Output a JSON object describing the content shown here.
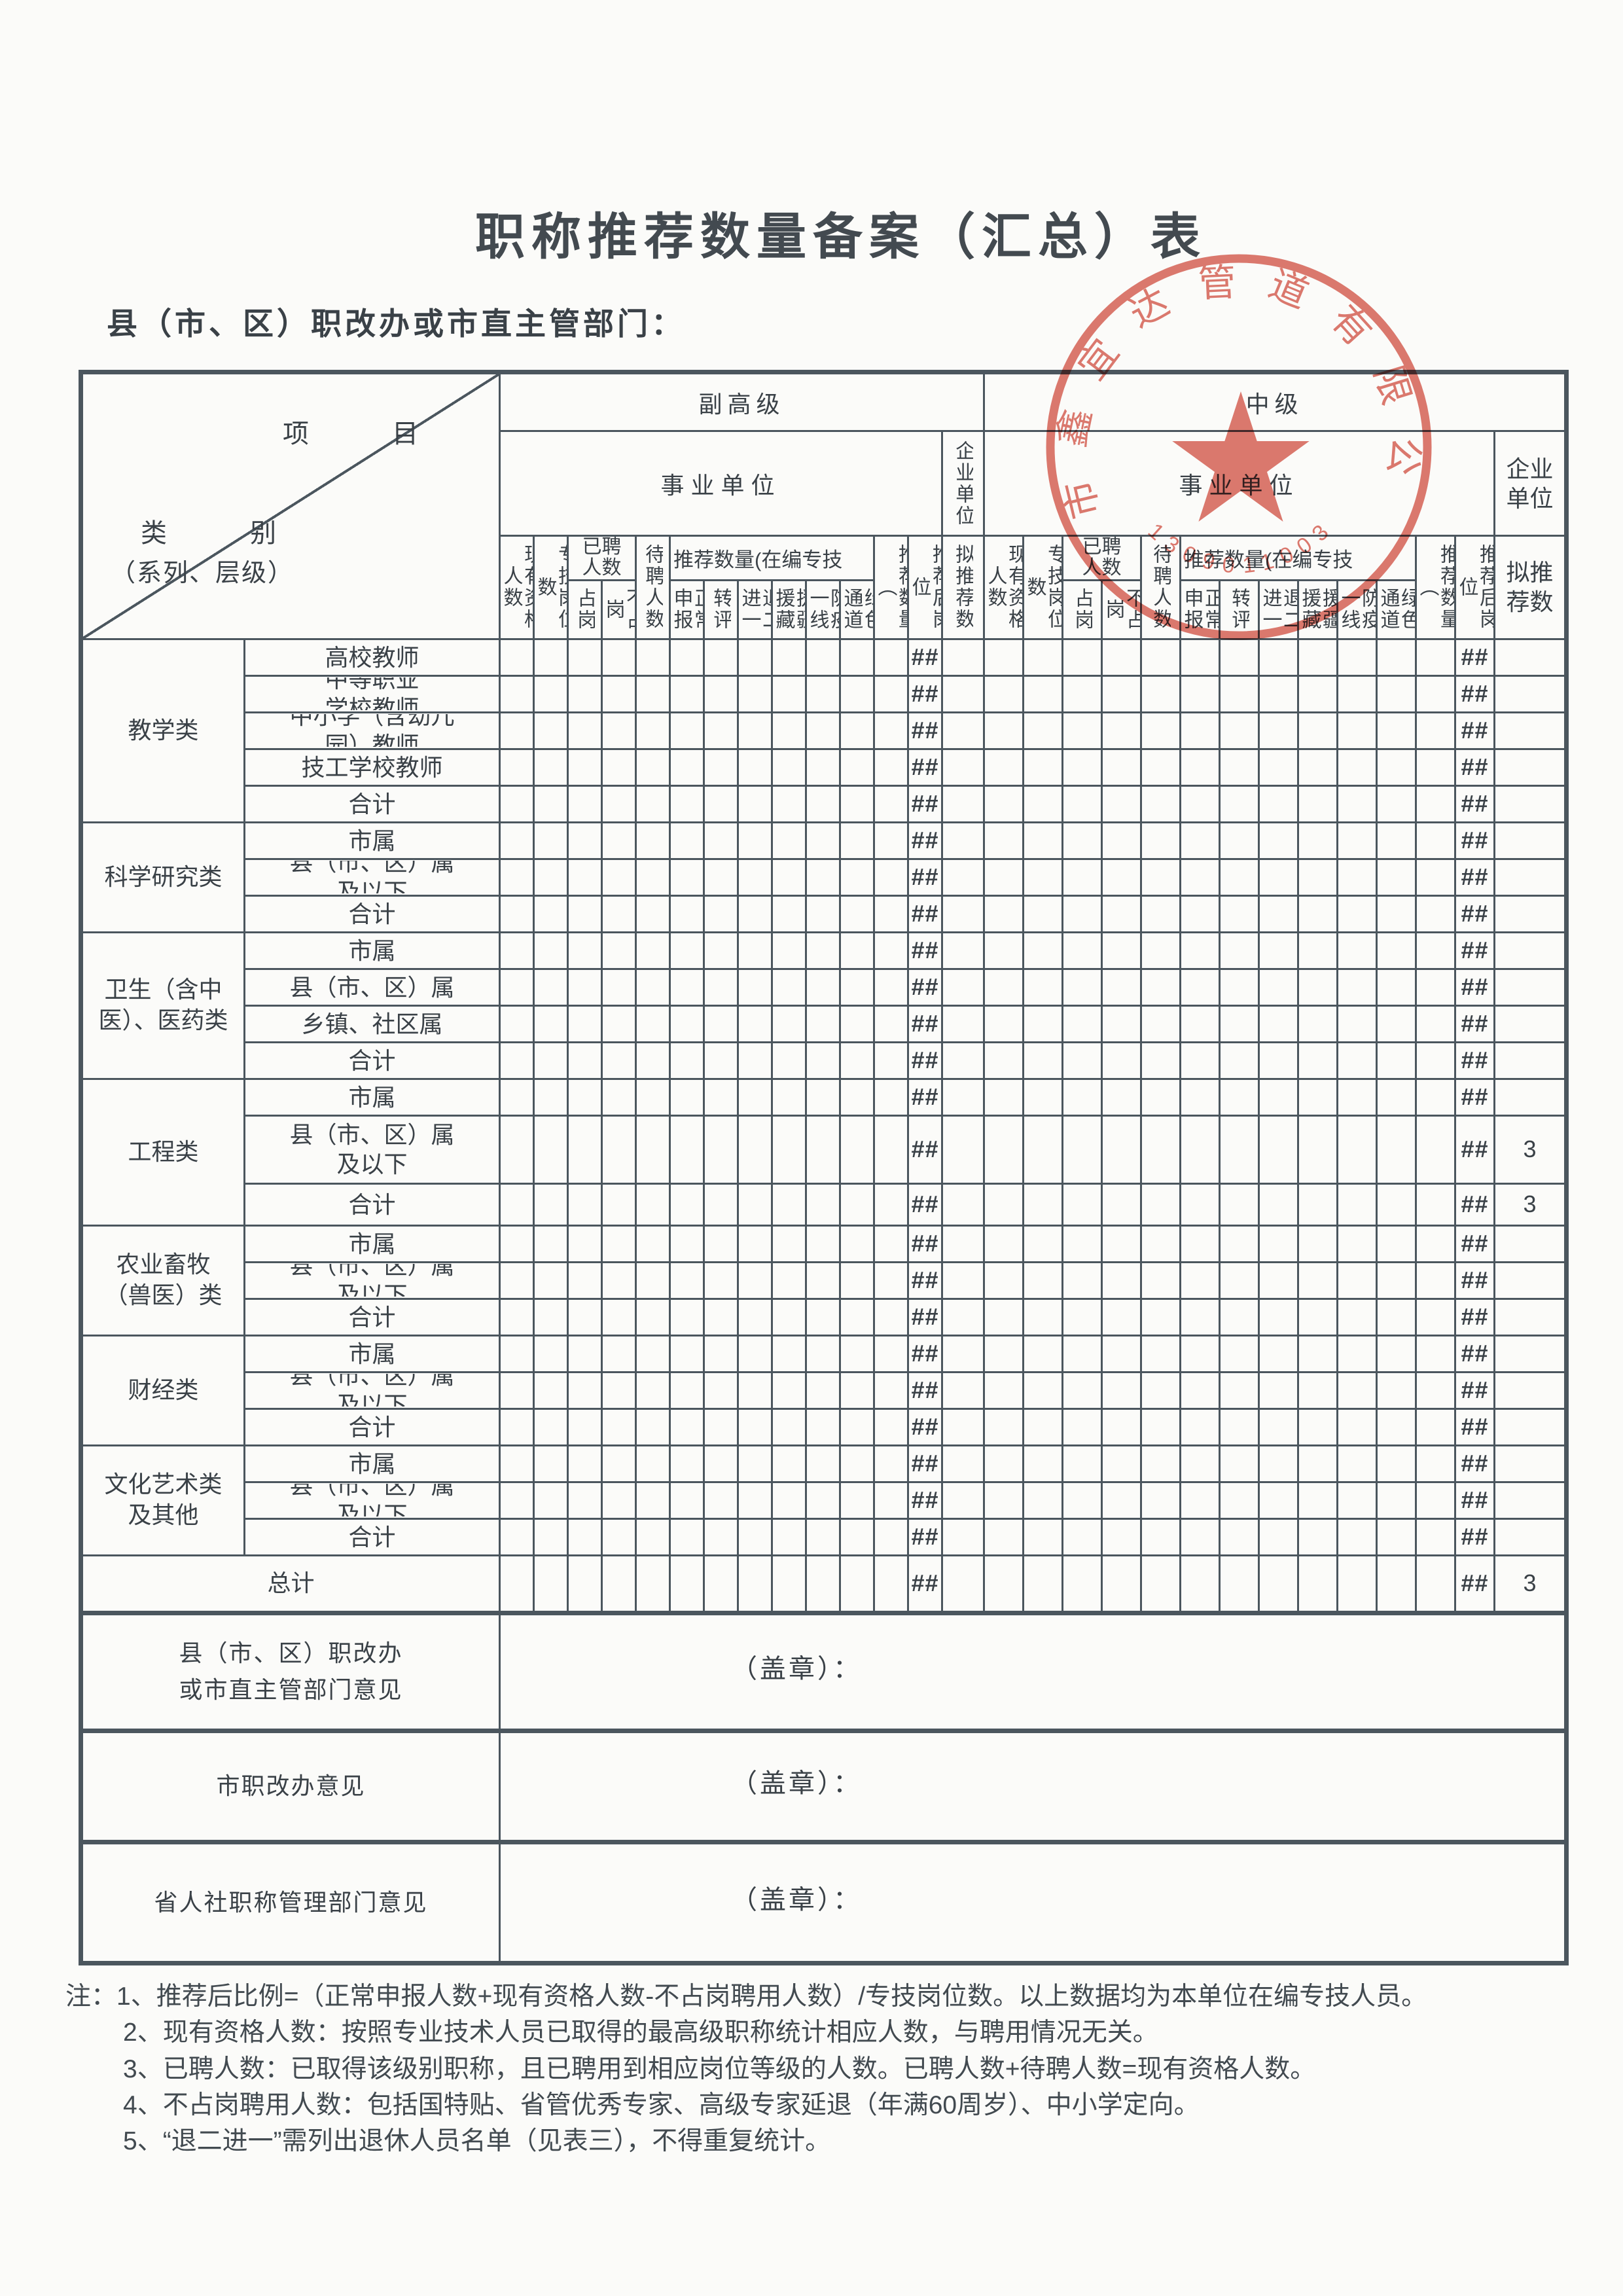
{
  "page": {
    "title": "职称推荐数量备案（汇总）表",
    "subtitle": "县（市、区）职改办或市直主管部门："
  },
  "colors": {
    "ink": "#3a4147",
    "line": "#4b565e",
    "stamp": "#d6584c",
    "paper": "#fbfbf9"
  },
  "corner": {
    "item": "项  目",
    "category": "类  别",
    "category_sub": "（系列、层级）"
  },
  "levels": [
    {
      "name": "副高级",
      "org": "事业单位",
      "ent": "企业单位"
    },
    {
      "name": "中级",
      "org": "事业单位",
      "ent": "企业单位"
    }
  ],
  "cols": {
    "existing": "现有资格人数",
    "post": "专技岗位数",
    "hired": "已聘人数",
    "on_post": "占岗",
    "off_post": "不占岗",
    "pending": "待聘人数",
    "rec_group": "推荐数量(在编专技",
    "normal": "正常申报",
    "transfer": "转评",
    "retire2": "退二进一",
    "xinjiang": "援疆援藏",
    "epidemic": "防疫一线",
    "green": "绿色通道",
    "rec_total": "推荐数量（",
    "ratio_after": "推荐后岗位",
    "proposed": "拟推荐数"
  },
  "rows": [
    {
      "cat": "教学类",
      "span": 5,
      "sub": "高校教师",
      "h": "n",
      "fg": "##",
      "zj": "##",
      "ni": ""
    },
    {
      "sub": "中等职业\n学校教师",
      "h": "n",
      "fg": "##",
      "zj": "##",
      "ni": ""
    },
    {
      "sub": "中小学（含幼儿\n园）教师",
      "h": "n",
      "fg": "##",
      "zj": "##",
      "ni": ""
    },
    {
      "sub": "技工学校教师",
      "h": "n",
      "fg": "##",
      "zj": "##",
      "ni": ""
    },
    {
      "sub": "合计",
      "h": "n",
      "fg": "##",
      "zj": "##",
      "ni": ""
    },
    {
      "cat": "科学研究类",
      "span": 3,
      "sub": "市属",
      "h": "n",
      "fg": "##",
      "zj": "##",
      "ni": ""
    },
    {
      "sub": "县（市、区）属\n及以下",
      "h": "n",
      "fg": "##",
      "zj": "##",
      "ni": ""
    },
    {
      "sub": "合计",
      "h": "n",
      "fg": "##",
      "zj": "##",
      "ni": ""
    },
    {
      "cat": "卫生（含中\n医）、医药类",
      "span": 4,
      "sub": "市属",
      "h": "n",
      "fg": "##",
      "zj": "##",
      "ni": ""
    },
    {
      "sub": "县（市、区）属",
      "h": "n",
      "fg": "##",
      "zj": "##",
      "ni": ""
    },
    {
      "sub": "乡镇、社区属",
      "h": "n",
      "fg": "##",
      "zj": "##",
      "ni": ""
    },
    {
      "sub": "合计",
      "h": "n",
      "fg": "##",
      "zj": "##",
      "ni": ""
    },
    {
      "cat": "工程类",
      "span": 3,
      "sub": "市属",
      "h": "n",
      "fg": "##",
      "zj": "##",
      "ni": ""
    },
    {
      "sub": "县（市、区）属\n及以下",
      "h": "t",
      "fg": "##",
      "zj": "##",
      "ni": "3"
    },
    {
      "sub": "合计",
      "h": "m",
      "fg": "##",
      "zj": "##",
      "ni": "3"
    },
    {
      "cat": "农业畜牧\n（兽医）类",
      "span": 3,
      "sub": "市属",
      "h": "n",
      "fg": "##",
      "zj": "##",
      "ni": ""
    },
    {
      "sub": "县（市、区）属\n及以下",
      "h": "n",
      "fg": "##",
      "zj": "##",
      "ni": ""
    },
    {
      "sub": "合计",
      "h": "n",
      "fg": "##",
      "zj": "##",
      "ni": ""
    },
    {
      "cat": "财经类",
      "span": 3,
      "sub": "市属",
      "h": "n",
      "fg": "##",
      "zj": "##",
      "ni": ""
    },
    {
      "sub": "县（市、区）属\n及以下",
      "h": "n",
      "fg": "##",
      "zj": "##",
      "ni": ""
    },
    {
      "sub": "合计",
      "h": "n",
      "fg": "##",
      "zj": "##",
      "ni": ""
    },
    {
      "cat": "文化艺术类\n及其他",
      "span": 3,
      "sub": "市属",
      "h": "n",
      "fg": "##",
      "zj": "##",
      "ni": ""
    },
    {
      "sub": "县（市、区）属\n及以下",
      "h": "n",
      "fg": "##",
      "zj": "##",
      "ni": ""
    },
    {
      "sub": "合计",
      "h": "n",
      "fg": "##",
      "zj": "##",
      "ni": ""
    },
    {
      "cat": "总计",
      "span": 1,
      "cspan": 2,
      "h": "g",
      "fg": "##",
      "zj": "##",
      "ni": "3"
    }
  ],
  "opinions": [
    {
      "label": "县（市、区）职改办\n或市直主管部门意见",
      "seal": "（盖章）："
    },
    {
      "label": "市职改办意见",
      "seal": "（盖章）："
    },
    {
      "label": "省人社职称管理部门意见",
      "seal": "（盖章）："
    }
  ],
  "notes": [
    "注：1、推荐后比例=（正常申报人数+现有资格人数-不占岗聘用人数）/专技岗位数。以上数据均为本单位在编专技人员。",
    "2、现有资格人数：按照专业技术人员已取得的最高级职称统计相应人数，与聘用情况无关。",
    "3、已聘人数：已取得该级别职称，且已聘用到相应岗位等级的人数。已聘人数+待聘人数=现有资格人数。",
    "4、不占岗聘用人数：包括国特贴、省管优秀专家、高级专家延退（年满60周岁）、中小学定向。",
    "5、“退二进一”需列出退休人员名单（见表三），不得重复统计。"
  ],
  "stamp": {
    "company": "市鑫宜达管道有限公司",
    "serial": "1309011003"
  }
}
